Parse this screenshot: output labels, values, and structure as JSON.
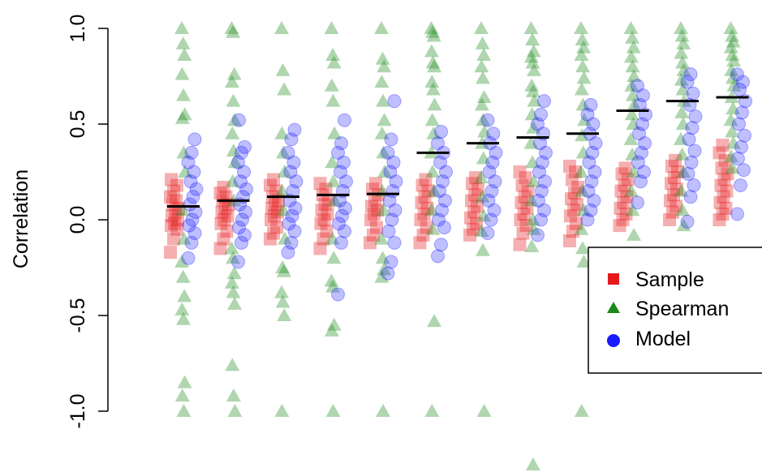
{
  "chart_data": {
    "type": "scatter",
    "title": "",
    "xlabel": "",
    "ylabel": "Correlation",
    "ylim": [
      -1.0,
      1.0
    ],
    "yticks": [
      "-1.0",
      "-0.5",
      "0.0",
      "0.5",
      "1.0"
    ],
    "ytick_values": [
      -1.0,
      -0.5,
      0.0,
      0.5,
      1.0
    ],
    "grid": false,
    "legend_position": "right",
    "groups": 12,
    "median_lines": [
      0.07,
      0.1,
      0.12,
      0.13,
      0.135,
      0.35,
      0.4,
      0.43,
      0.45,
      0.57,
      0.62,
      0.64
    ],
    "series": [
      {
        "name": "Sample",
        "marker": "square",
        "color": "#e41a1c",
        "values": [
          [
            -0.17,
            -0.1,
            -0.05,
            -0.03,
            -0.02,
            0.0,
            0.02,
            0.04,
            0.06,
            0.08,
            0.1,
            0.12,
            0.15,
            0.18,
            0.21
          ],
          [
            -0.15,
            -0.1,
            -0.06,
            -0.02,
            0.0,
            0.02,
            0.04,
            0.06,
            0.08,
            0.1,
            0.12,
            0.14,
            0.17
          ],
          [
            -0.1,
            -0.07,
            -0.04,
            0.0,
            0.02,
            0.04,
            0.06,
            0.08,
            0.1,
            0.12,
            0.15,
            0.18,
            0.21
          ],
          [
            -0.15,
            -0.1,
            -0.06,
            -0.02,
            0.0,
            0.03,
            0.05,
            0.08,
            0.1,
            0.13,
            0.16,
            0.19
          ],
          [
            -0.12,
            -0.08,
            -0.04,
            0.0,
            0.03,
            0.05,
            0.07,
            0.1,
            0.13,
            0.16,
            0.19
          ],
          [
            -0.12,
            -0.08,
            -0.04,
            0.0,
            0.03,
            0.06,
            0.09,
            0.12,
            0.15,
            0.18,
            0.21
          ],
          [
            -0.08,
            -0.05,
            -0.02,
            0.01,
            0.04,
            0.07,
            0.1,
            0.13,
            0.16,
            0.19,
            0.22
          ],
          [
            -0.13,
            -0.07,
            -0.03,
            0.0,
            0.03,
            0.06,
            0.09,
            0.12,
            0.15,
            0.18,
            0.22,
            0.25
          ],
          [
            -0.11,
            -0.06,
            -0.02,
            0.02,
            0.05,
            0.08,
            0.11,
            0.14,
            0.17,
            0.21,
            0.25,
            0.28
          ],
          [
            -0.03,
            0.0,
            0.03,
            0.06,
            0.09,
            0.12,
            0.15,
            0.18,
            0.21,
            0.24,
            0.27
          ],
          [
            0.0,
            0.04,
            0.07,
            0.1,
            0.13,
            0.16,
            0.19,
            0.22,
            0.25,
            0.28,
            0.31
          ],
          [
            0.0,
            0.03,
            0.06,
            0.09,
            0.12,
            0.15,
            0.18,
            0.21,
            0.24,
            0.27,
            0.31,
            0.35,
            0.39
          ]
        ]
      },
      {
        "name": "Spearman",
        "marker": "triangle",
        "color": "#1a8a1a",
        "values": [
          [
            1.0,
            0.92,
            0.86,
            0.76,
            0.65,
            0.55,
            0.53,
            0.35,
            0.25,
            0.05,
            -0.1,
            -0.22,
            -0.3,
            -0.4,
            -0.47,
            -0.52,
            -0.85,
            -0.92,
            -1.0
          ],
          [
            1.0,
            0.98,
            0.76,
            0.72,
            0.62,
            0.52,
            0.45,
            0.36,
            0.3,
            0.2,
            0.1,
            -0.15,
            -0.2,
            -0.28,
            -0.33,
            -0.38,
            -0.44,
            -0.76,
            -0.92,
            -1.0
          ],
          [
            1.0,
            0.78,
            0.68,
            0.45,
            0.35,
            0.25,
            0.15,
            0.05,
            -0.1,
            -0.25,
            -0.27,
            -0.38,
            -0.43,
            -0.5,
            -1.0
          ],
          [
            1.0,
            0.86,
            0.82,
            0.7,
            0.62,
            0.45,
            0.3,
            0.2,
            0.1,
            -0.1,
            -0.2,
            -0.32,
            -0.35,
            -0.55,
            -0.58,
            -1.0
          ],
          [
            1.0,
            0.84,
            0.8,
            0.72,
            0.62,
            0.52,
            0.45,
            0.35,
            0.25,
            0.15,
            0.05,
            -0.1,
            -0.2,
            -0.26,
            -0.3,
            -1.0
          ],
          [
            1.0,
            0.98,
            0.96,
            0.88,
            0.82,
            0.8,
            0.72,
            0.68,
            0.6,
            0.52,
            0.45,
            0.35,
            0.25,
            0.15,
            0.05,
            -0.05,
            -0.53,
            -1.0
          ],
          [
            1.0,
            0.92,
            0.86,
            0.8,
            0.74,
            0.64,
            0.6,
            0.52,
            0.46,
            0.4,
            0.32,
            0.22,
            0.12,
            0.02,
            -0.06,
            -0.16,
            -1.0
          ],
          [
            1.0,
            0.94,
            0.88,
            0.85,
            0.82,
            0.78,
            0.7,
            0.67,
            0.62,
            0.55,
            0.48,
            0.4,
            0.3,
            0.2,
            0.1,
            0.0,
            -0.05,
            -0.14,
            -1.28
          ],
          [
            1.0,
            0.94,
            0.9,
            0.86,
            0.8,
            0.74,
            0.68,
            0.6,
            0.52,
            0.44,
            0.35,
            0.25,
            0.15,
            0.05,
            -0.05,
            -0.15,
            -0.22,
            -1.0
          ],
          [
            1.0,
            0.95,
            0.9,
            0.85,
            0.8,
            0.75,
            0.7,
            0.65,
            0.6,
            0.55,
            0.5,
            0.42,
            0.34,
            0.25,
            0.15,
            0.05,
            -0.08
          ],
          [
            1.0,
            0.96,
            0.92,
            0.87,
            0.82,
            0.78,
            0.73,
            0.68,
            0.62,
            0.56,
            0.5,
            0.42,
            0.34,
            0.25,
            0.15,
            0.05,
            -0.03
          ],
          [
            1.0,
            0.96,
            0.93,
            0.9,
            0.86,
            0.83,
            0.78,
            0.74,
            0.7,
            0.64,
            0.58,
            0.52,
            0.46,
            0.4,
            0.33,
            0.27
          ]
        ]
      },
      {
        "name": "Model",
        "marker": "circle",
        "color": "#1a1aff",
        "values": [
          [
            -0.2,
            -0.12,
            -0.07,
            -0.03,
            0.0,
            0.04,
            0.08,
            0.12,
            0.16,
            0.2,
            0.25,
            0.3,
            0.35,
            0.42
          ],
          [
            -0.22,
            -0.12,
            -0.08,
            -0.04,
            0.0,
            0.04,
            0.08,
            0.12,
            0.16,
            0.2,
            0.25,
            0.3,
            0.35,
            0.38,
            0.52
          ],
          [
            -0.17,
            -0.12,
            -0.06,
            -0.02,
            0.02,
            0.06,
            0.1,
            0.15,
            0.2,
            0.25,
            0.3,
            0.35,
            0.42,
            0.47
          ],
          [
            -0.39,
            -0.12,
            -0.06,
            -0.02,
            0.02,
            0.06,
            0.1,
            0.15,
            0.2,
            0.25,
            0.3,
            0.35,
            0.4,
            0.52
          ],
          [
            -0.28,
            -0.22,
            -0.12,
            -0.06,
            0.0,
            0.05,
            0.1,
            0.15,
            0.2,
            0.25,
            0.3,
            0.35,
            0.42,
            0.62
          ],
          [
            -0.19,
            -0.13,
            -0.04,
            0.0,
            0.05,
            0.1,
            0.15,
            0.2,
            0.25,
            0.3,
            0.35,
            0.4,
            0.46
          ],
          [
            -0.07,
            0.0,
            0.05,
            0.1,
            0.15,
            0.2,
            0.25,
            0.3,
            0.35,
            0.4,
            0.45,
            0.52
          ],
          [
            -0.08,
            0.0,
            0.05,
            0.1,
            0.15,
            0.2,
            0.25,
            0.3,
            0.35,
            0.4,
            0.45,
            0.5,
            0.55,
            0.62
          ],
          [
            0.0,
            0.05,
            0.1,
            0.15,
            0.2,
            0.25,
            0.3,
            0.35,
            0.4,
            0.45,
            0.5,
            0.55,
            0.6
          ],
          [
            0.09,
            0.2,
            0.25,
            0.3,
            0.35,
            0.4,
            0.45,
            0.5,
            0.55,
            0.6,
            0.65,
            0.7
          ],
          [
            -0.01,
            0.12,
            0.18,
            0.24,
            0.3,
            0.36,
            0.42,
            0.48,
            0.54,
            0.6,
            0.66,
            0.72,
            0.76
          ],
          [
            0.03,
            0.18,
            0.26,
            0.32,
            0.38,
            0.44,
            0.5,
            0.56,
            0.62,
            0.68,
            0.72,
            0.76
          ]
        ]
      }
    ]
  },
  "legend": {
    "items": [
      {
        "label": "Sample",
        "marker": "square",
        "color": "#e41a1c"
      },
      {
        "label": "Spearman",
        "marker": "triangle",
        "color": "#1a8a1a"
      },
      {
        "label": "Model",
        "marker": "circle",
        "color": "#1a1aff"
      }
    ]
  }
}
